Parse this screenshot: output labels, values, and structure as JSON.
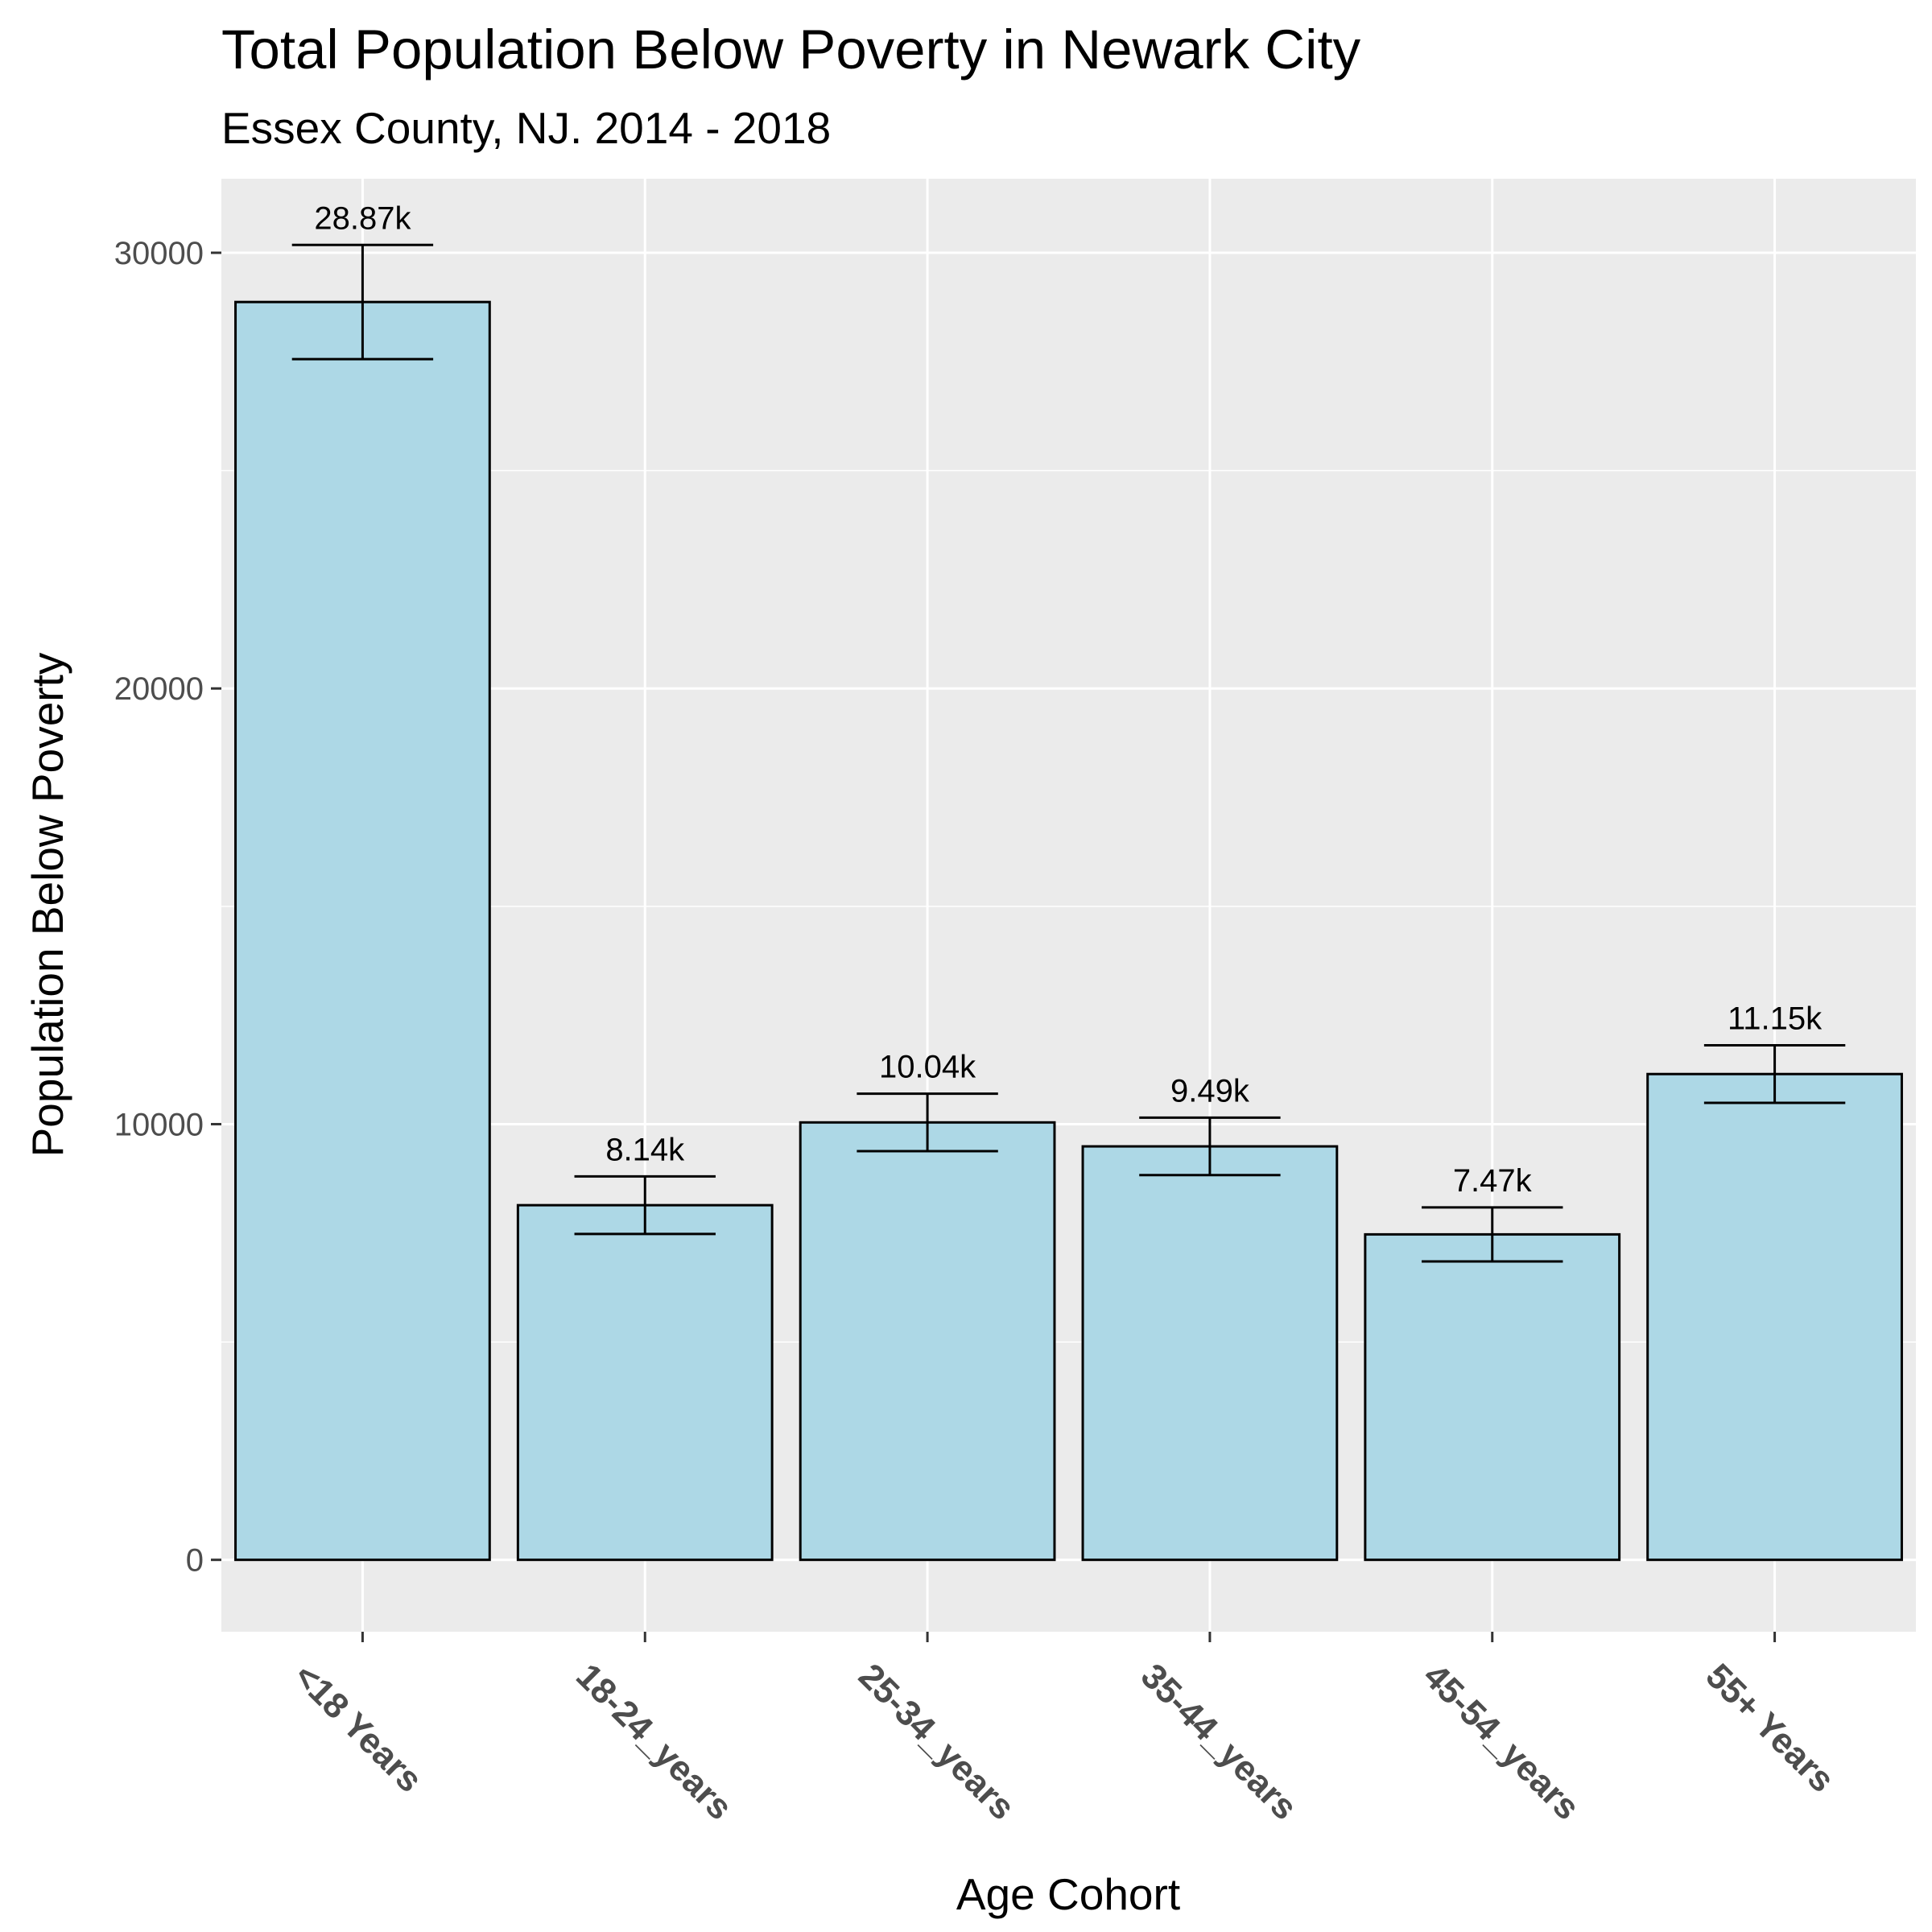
{
  "chart_data": {
    "type": "bar",
    "title": "Total Population Below Poverty in Newark City",
    "subtitle": "Essex County, NJ. 2014 - 2018",
    "xlabel": "Age Cohort",
    "ylabel": "Population Below Poverty",
    "categories": [
      "<18 Years",
      "18-24_years",
      "25-34_years",
      "35-44_years",
      "45-54_years",
      "55+ Years"
    ],
    "values": [
      28870,
      8140,
      10040,
      9490,
      7470,
      11150
    ],
    "data_labels": [
      "28.87k",
      "8.14k",
      "10.04k",
      "9.49k",
      "7.47k",
      "11.15k"
    ],
    "error_low": [
      27560,
      7480,
      9380,
      8830,
      6850,
      10490
    ],
    "error_high": [
      30180,
      8800,
      10700,
      10150,
      8090,
      11810
    ],
    "yticks": [
      0,
      10000,
      20000,
      30000
    ],
    "ytick_labels": [
      "0",
      "10000",
      "20000",
      "30000"
    ],
    "ylim": [
      -1650,
      31700
    ],
    "grid": true,
    "colors": {
      "bar_fill": "#add8e6",
      "bar_outline": "#000000",
      "panel_background": "#ebebeb",
      "grid": "#ffffff"
    }
  }
}
